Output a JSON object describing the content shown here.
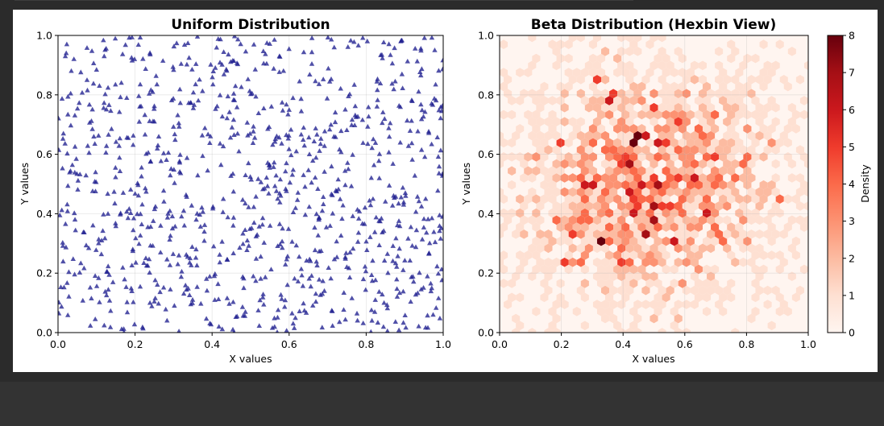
{
  "figure": {
    "background": "#ffffff"
  },
  "chart_data": [
    {
      "type": "scatter",
      "title": "Uniform Distribution",
      "xlabel": "X values",
      "ylabel": "Y values",
      "xlim": [
        0.0,
        1.0
      ],
      "ylim": [
        0.0,
        1.0
      ],
      "xticks": [
        "0.0",
        "0.2",
        "0.4",
        "0.6",
        "0.8",
        "1.0"
      ],
      "yticks": [
        "0.0",
        "0.2",
        "0.4",
        "0.6",
        "0.8",
        "1.0"
      ],
      "grid": true,
      "marker": "triangle",
      "color": "#1f1f8f",
      "point_count": 1000,
      "distribution": "uniform"
    },
    {
      "type": "heatmap",
      "subtype": "hexbin",
      "title": "Beta Distribution (Hexbin View)",
      "xlabel": "X values",
      "ylabel": "Y values",
      "xlim": [
        0.0,
        1.0
      ],
      "ylim": [
        0.0,
        1.0
      ],
      "xticks": [
        "0.0",
        "0.2",
        "0.4",
        "0.6",
        "0.8",
        "1.0"
      ],
      "yticks": [
        "0.0",
        "0.2",
        "0.4",
        "0.6",
        "0.8",
        "1.0"
      ],
      "grid": true,
      "colormap": "Reds",
      "distribution": "beta",
      "colorbar": {
        "label": "Density",
        "range": [
          0,
          8
        ],
        "ticks": [
          "0",
          "1",
          "2",
          "3",
          "4",
          "5",
          "6",
          "7",
          "8"
        ]
      },
      "hot_bins": [
        {
          "x": 0.44,
          "y": 0.65,
          "count": 8
        },
        {
          "x": 0.33,
          "y": 0.3,
          "count": 8
        },
        {
          "x": 0.48,
          "y": 0.33,
          "count": 7
        },
        {
          "x": 0.51,
          "y": 0.38,
          "count": 7
        },
        {
          "x": 0.63,
          "y": 0.53,
          "count": 6
        },
        {
          "x": 0.35,
          "y": 0.79,
          "count": 6
        },
        {
          "x": 0.31,
          "y": 0.86,
          "count": 5
        },
        {
          "x": 0.56,
          "y": 0.3,
          "count": 6
        },
        {
          "x": 0.67,
          "y": 0.41,
          "count": 6
        },
        {
          "x": 0.29,
          "y": 0.49,
          "count": 6
        },
        {
          "x": 0.46,
          "y": 0.5,
          "count": 6
        },
        {
          "x": 0.2,
          "y": 0.63,
          "count": 5
        },
        {
          "x": 0.4,
          "y": 0.6,
          "count": 5
        },
        {
          "x": 0.38,
          "y": 0.8,
          "count": 5
        },
        {
          "x": 0.58,
          "y": 0.7,
          "count": 5
        },
        {
          "x": 0.22,
          "y": 0.24,
          "count": 5
        },
        {
          "x": 0.23,
          "y": 0.33,
          "count": 5
        },
        {
          "x": 0.4,
          "y": 0.24,
          "count": 5
        },
        {
          "x": 0.55,
          "y": 0.42,
          "count": 5
        },
        {
          "x": 0.72,
          "y": 0.32,
          "count": 4
        },
        {
          "x": 0.76,
          "y": 0.53,
          "count": 4
        },
        {
          "x": 0.8,
          "y": 0.58,
          "count": 4
        },
        {
          "x": 0.91,
          "y": 0.44,
          "count": 4
        },
        {
          "x": 0.68,
          "y": 0.59,
          "count": 4
        }
      ]
    }
  ]
}
